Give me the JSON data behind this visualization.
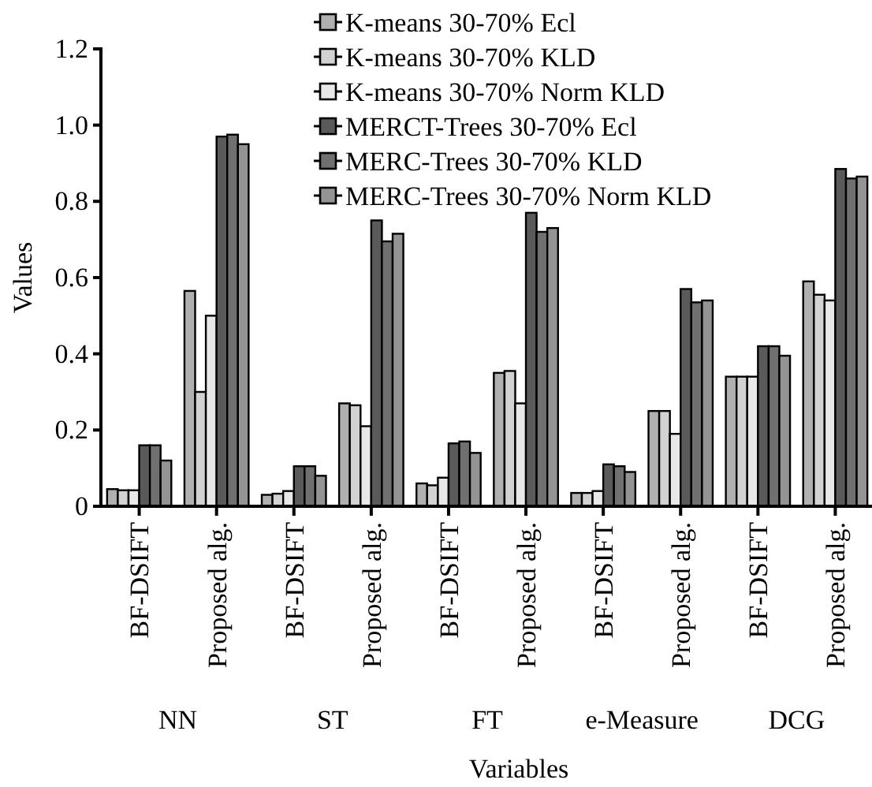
{
  "chart_data": {
    "type": "bar",
    "xlabel": "Variables",
    "ylabel": "Values",
    "categories": [
      "BF-DSIFT",
      "Proposed alg.",
      "BF-DSIFT",
      "Proposed alg.",
      "BF-DSIFT",
      "Proposed alg.",
      "BF-DSIFT",
      "Proposed alg.",
      "BF-DSIFT",
      "Proposed alg."
    ],
    "annotations": [
      "NN",
      "ST",
      "FT",
      "e-Measure",
      "DCG"
    ],
    "series": [
      {
        "name": "K-means 30-70% Ecl",
        "color": "#b0b0b0",
        "values": [
          0.045,
          0.565,
          0.03,
          0.27,
          0.06,
          0.35,
          0.035,
          0.25,
          0.34,
          0.59
        ]
      },
      {
        "name": "K-means 30-70% KLD",
        "color": "#d2d2d2",
        "values": [
          0.042,
          0.3,
          0.033,
          0.265,
          0.055,
          0.355,
          0.035,
          0.25,
          0.34,
          0.555
        ]
      },
      {
        "name": "K-means 30-70% Norm KLD",
        "color": "#e8e8e8",
        "values": [
          0.042,
          0.5,
          0.04,
          0.21,
          0.075,
          0.27,
          0.04,
          0.19,
          0.34,
          0.54
        ]
      },
      {
        "name": "MERCT-Trees 30-70% Ecl",
        "color": "#5a5a5a",
        "values": [
          0.16,
          0.97,
          0.105,
          0.75,
          0.165,
          0.77,
          0.11,
          0.57,
          0.42,
          0.885
        ]
      },
      {
        "name": "MERC-Trees 30-70% KLD",
        "color": "#707070",
        "values": [
          0.16,
          0.975,
          0.105,
          0.695,
          0.17,
          0.72,
          0.105,
          0.535,
          0.42,
          0.86
        ]
      },
      {
        "name": "MERC-Trees 30-70% Norm KLD",
        "color": "#949494",
        "values": [
          0.12,
          0.95,
          0.08,
          0.715,
          0.14,
          0.73,
          0.09,
          0.54,
          0.395,
          0.865
        ]
      }
    ],
    "ylim": [
      0,
      1.2
    ],
    "yticks": [
      {
        "value": 0,
        "label": "0"
      },
      {
        "value": 0.2,
        "label": "0.2"
      },
      {
        "value": 0.4,
        "label": "0.4"
      },
      {
        "value": 0.6,
        "label": "0.6"
      },
      {
        "value": 0.8,
        "label": "0.8"
      },
      {
        "value": 1,
        "label": "1.0"
      },
      {
        "value": 1.2,
        "label": "1.2"
      }
    ],
    "grid": false,
    "legend": "top right"
  }
}
